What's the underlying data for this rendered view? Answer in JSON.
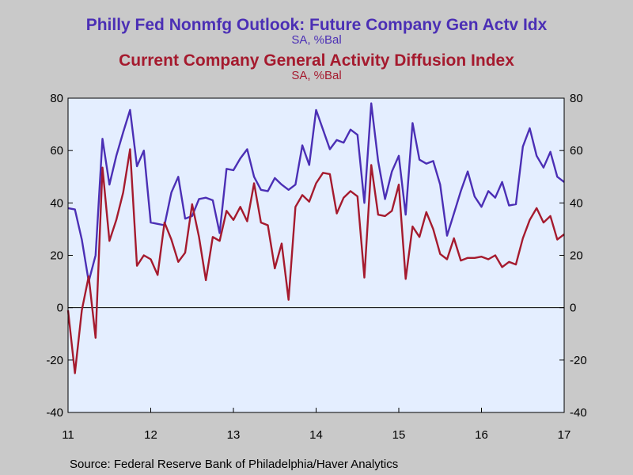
{
  "chart_data": {
    "type": "line",
    "title": "Philly Fed Nonmfg Outlook: Future Company Gen Actv Idx",
    "title_unit": "SA, %Bal",
    "title2": "Current Company General Activity Diffusion Index",
    "title2_unit": "SA, %Bal",
    "source": "Source:  Federal Reserve Bank of Philadelphia/Haver Analytics",
    "x_tick_labels": [
      "11",
      "12",
      "13",
      "14",
      "15",
      "16",
      "17"
    ],
    "x_range": [
      2011.0,
      2017.0
    ],
    "ylim": [
      -40,
      80
    ],
    "y_ticks": [
      -40,
      -20,
      0,
      20,
      40,
      60,
      80
    ],
    "y_tick_labels": [
      "-40",
      "-20",
      "0",
      "20",
      "40",
      "60",
      "80"
    ],
    "zero_line": true,
    "grid": false,
    "plot_background": "#e4eeff",
    "series": [
      {
        "name": "Philly Fed Nonmfg Outlook: Future Company Gen Actv Idx",
        "color": "#4b2fb5",
        "x": [
          2011.0,
          2011.0833,
          2011.1667,
          2011.25,
          2011.3333,
          2011.4167,
          2011.5,
          2011.5833,
          2011.6667,
          2011.75,
          2011.8333,
          2011.9167,
          2012.0,
          2012.0833,
          2012.1667,
          2012.25,
          2012.3333,
          2012.4167,
          2012.5,
          2012.5833,
          2012.6667,
          2012.75,
          2012.8333,
          2012.9167,
          2013.0,
          2013.0833,
          2013.1667,
          2013.25,
          2013.3333,
          2013.4167,
          2013.5,
          2013.5833,
          2013.6667,
          2013.75,
          2013.8333,
          2013.9167,
          2014.0,
          2014.0833,
          2014.1667,
          2014.25,
          2014.3333,
          2014.4167,
          2014.5,
          2014.5833,
          2014.6667,
          2014.75,
          2014.8333,
          2014.9167,
          2015.0,
          2015.0833,
          2015.1667,
          2015.25,
          2015.3333,
          2015.4167,
          2015.5,
          2015.5833,
          2015.6667,
          2015.75,
          2015.8333,
          2015.9167,
          2016.0,
          2016.0833,
          2016.1667,
          2016.25,
          2016.3333,
          2016.4167,
          2016.5,
          2016.5833,
          2016.6667,
          2016.75,
          2016.8333,
          2016.9167,
          2017.0
        ],
        "values": [
          38.0,
          37.5,
          26.0,
          10.0,
          20.0,
          64.5,
          47.0,
          58.0,
          67.0,
          75.5,
          54.0,
          60.0,
          32.5,
          32.0,
          31.5,
          44.0,
          50.0,
          34.0,
          35.0,
          41.5,
          42.0,
          41.0,
          28.5,
          53.0,
          52.5,
          57.0,
          60.5,
          50.0,
          45.0,
          44.5,
          49.5,
          47.0,
          45.0,
          47.0,
          62.0,
          54.5,
          75.5,
          68.0,
          60.5,
          64.0,
          63.0,
          68.0,
          66.0,
          40.0,
          78.0,
          56.0,
          41.5,
          52.0,
          58.0,
          35.5,
          70.5,
          56.5,
          55.0,
          56.0,
          47.0,
          27.5,
          36.0,
          44.5,
          52.0,
          42.5,
          38.5,
          44.5,
          42.0,
          48.0,
          39.0,
          39.5,
          61.5,
          68.5,
          58.0,
          53.5,
          59.5,
          50.0,
          48.0
        ]
      },
      {
        "name": "Current Company General Activity Diffusion Index",
        "color": "#a51a2e",
        "x": [
          2011.0,
          2011.0833,
          2011.1667,
          2011.25,
          2011.3333,
          2011.4167,
          2011.5,
          2011.5833,
          2011.6667,
          2011.75,
          2011.8333,
          2011.9167,
          2012.0,
          2012.0833,
          2012.1667,
          2012.25,
          2012.3333,
          2012.4167,
          2012.5,
          2012.5833,
          2012.6667,
          2012.75,
          2012.8333,
          2012.9167,
          2013.0,
          2013.0833,
          2013.1667,
          2013.25,
          2013.3333,
          2013.4167,
          2013.5,
          2013.5833,
          2013.6667,
          2013.75,
          2013.8333,
          2013.9167,
          2014.0,
          2014.0833,
          2014.1667,
          2014.25,
          2014.3333,
          2014.4167,
          2014.5,
          2014.5833,
          2014.6667,
          2014.75,
          2014.8333,
          2014.9167,
          2015.0,
          2015.0833,
          2015.1667,
          2015.25,
          2015.3333,
          2015.4167,
          2015.5,
          2015.5833,
          2015.6667,
          2015.75,
          2015.8333,
          2015.9167,
          2016.0,
          2016.0833,
          2016.1667,
          2016.25,
          2016.3333,
          2016.4167,
          2016.5,
          2016.5833,
          2016.6667,
          2016.75,
          2016.8333,
          2016.9167,
          2017.0
        ],
        "values": [
          -1.0,
          -25.0,
          -1.0,
          12.0,
          -11.5,
          53.5,
          25.5,
          33.5,
          44.0,
          60.5,
          16.0,
          20.0,
          18.5,
          12.5,
          32.5,
          26.0,
          17.5,
          21.0,
          39.5,
          27.0,
          10.5,
          27.0,
          25.5,
          37.0,
          33.5,
          38.5,
          33.0,
          47.5,
          32.5,
          31.5,
          15.0,
          24.5,
          3.0,
          38.5,
          43.0,
          40.5,
          47.5,
          51.5,
          51.0,
          36.0,
          42.0,
          44.5,
          42.5,
          11.5,
          54.5,
          35.5,
          35.0,
          37.0,
          47.0,
          11.0,
          31.0,
          27.0,
          36.5,
          30.0,
          20.5,
          18.5,
          26.5,
          18.0,
          19.0,
          19.0,
          19.5,
          18.5,
          20.0,
          15.5,
          17.5,
          16.5,
          26.5,
          33.5,
          38.0,
          32.5,
          35.0,
          26.0,
          28.0
        ]
      }
    ]
  }
}
